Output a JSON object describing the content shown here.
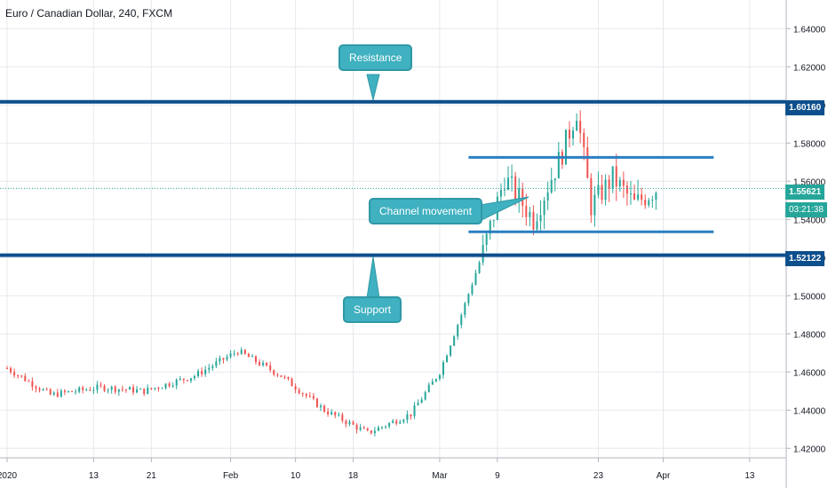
{
  "header": {
    "title": "Euro / Canadian Dollar, 240, FXCM"
  },
  "colors": {
    "up": "#26a69a",
    "down": "#ef5350",
    "level": "#0d4f8c",
    "channel": "#2a7fc1",
    "callout": "#3fb1c0",
    "current": "#26a69a",
    "grid": "#e6e9ee"
  },
  "annotations": {
    "resistance": "Resistance",
    "support": "Support",
    "channel": "Channel movement"
  },
  "price_tags": {
    "resistance": "1.60160",
    "current": "1.55621",
    "countdown": "03:21:38",
    "support": "1.52122"
  },
  "chart_data": {
    "type": "candlestick",
    "title": "Euro / Canadian Dollar, 240, FXCM",
    "ylim": [
      1.415,
      1.655
    ],
    "y_ticks": [
      "1.42000",
      "1.44000",
      "1.46000",
      "1.48000",
      "1.50000",
      "1.52000",
      "1.54000",
      "1.56000",
      "1.58000",
      "1.60000",
      "1.62000",
      "1.64000"
    ],
    "x_ticks": [
      "2020",
      "13",
      "21",
      "Feb",
      "10",
      "18",
      "Mar",
      "9",
      "23",
      "Apr",
      "13"
    ],
    "grid": true,
    "levels": {
      "resistance": 1.6016,
      "support": 1.52122,
      "current": 1.55621
    },
    "channel": {
      "upper": 1.5725,
      "lower": 1.5335,
      "from": "Mar 5",
      "to": "Apr 8"
    },
    "price_path": [
      {
        "date": "Jan 1",
        "close": 1.462
      },
      {
        "date": "Jan 7",
        "close": 1.448
      },
      {
        "date": "Jan 14",
        "close": 1.452
      },
      {
        "date": "Jan 20",
        "close": 1.45
      },
      {
        "date": "Jan 27",
        "close": 1.458
      },
      {
        "date": "Feb 2",
        "close": 1.471
      },
      {
        "date": "Feb 8",
        "close": 1.458
      },
      {
        "date": "Feb 14",
        "close": 1.44
      },
      {
        "date": "Feb 20",
        "close": 1.428
      },
      {
        "date": "Feb 26",
        "close": 1.438
      },
      {
        "date": "Mar 1",
        "close": 1.46
      },
      {
        "date": "Mar 4",
        "close": 1.49
      },
      {
        "date": "Mar 7",
        "close": 1.523
      },
      {
        "date": "Mar 10",
        "close": 1.562
      },
      {
        "date": "Mar 14",
        "close": 1.54
      },
      {
        "date": "Mar 18",
        "close": 1.575
      },
      {
        "date": "Mar 20",
        "close": 1.597
      },
      {
        "date": "Mar 22",
        "close": 1.547
      },
      {
        "date": "Mar 25",
        "close": 1.562
      },
      {
        "date": "Mar 28",
        "close": 1.548
      },
      {
        "date": "Mar 31",
        "close": 1.556
      }
    ]
  }
}
